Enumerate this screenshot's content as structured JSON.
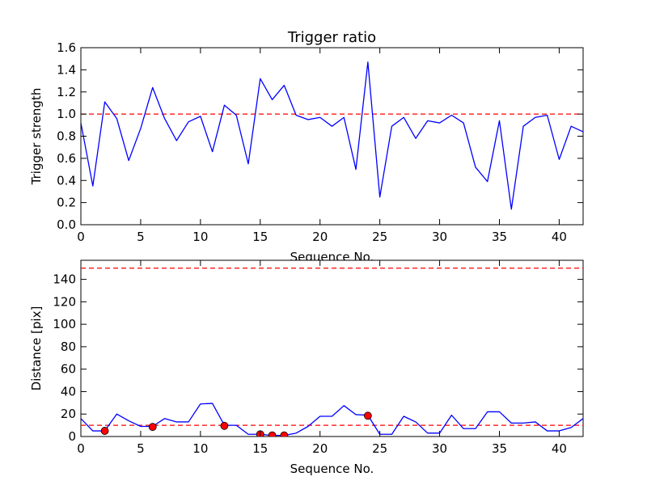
{
  "chart_data": [
    {
      "type": "line",
      "title": "Trigger ratio",
      "xlabel": "Sequence No.",
      "ylabel": "Trigger strength",
      "xlim": [
        0,
        42
      ],
      "ylim": [
        0,
        1.6
      ],
      "xticks": [
        0,
        5,
        10,
        15,
        20,
        25,
        30,
        35,
        40
      ],
      "yticks": [
        0.0,
        0.2,
        0.4,
        0.6,
        0.8,
        1.0,
        1.2,
        1.4,
        1.6
      ],
      "ytick_labels": [
        "0.0",
        "0.2",
        "0.4",
        "0.6",
        "0.8",
        "1.0",
        "1.2",
        "1.4",
        "1.6"
      ],
      "grid": false,
      "series": [
        {
          "color": "#0000ff",
          "style": "solid",
          "x": [
            0,
            1,
            2,
            3,
            4,
            5,
            6,
            7,
            8,
            9,
            10,
            11,
            12,
            13,
            14,
            15,
            16,
            17,
            18,
            19,
            20,
            21,
            22,
            23,
            24,
            25,
            26,
            27,
            28,
            29,
            30,
            31,
            32,
            33,
            34,
            35,
            36,
            37,
            38,
            39,
            40,
            41,
            42
          ],
          "y": [
            0.92,
            0.35,
            1.11,
            0.96,
            0.58,
            0.87,
            1.24,
            0.96,
            0.76,
            0.93,
            0.98,
            0.66,
            1.08,
            0.99,
            0.55,
            1.32,
            1.13,
            1.26,
            0.99,
            0.95,
            0.97,
            0.89,
            0.97,
            0.5,
            1.47,
            0.25,
            0.89,
            0.97,
            0.78,
            0.94,
            0.92,
            0.99,
            0.92,
            0.52,
            0.39,
            0.94,
            0.14,
            0.89,
            0.97,
            0.99,
            0.59,
            0.89,
            0.84
          ]
        }
      ],
      "hlines": [
        {
          "y": 1.0,
          "color": "#ff0000",
          "style": "dashed"
        }
      ]
    },
    {
      "type": "line",
      "title": "",
      "xlabel": "Sequence No.",
      "ylabel": "Distance [pix]",
      "xlim": [
        0,
        42
      ],
      "ylim": [
        0,
        157
      ],
      "xticks": [
        0,
        5,
        10,
        15,
        20,
        25,
        30,
        35,
        40
      ],
      "yticks": [
        0,
        20,
        40,
        60,
        80,
        100,
        120,
        140
      ],
      "ytick_labels": [
        "0",
        "20",
        "40",
        "60",
        "80",
        "100",
        "120",
        "140"
      ],
      "grid": false,
      "series": [
        {
          "color": "#0000ff",
          "style": "solid",
          "x": [
            0,
            1,
            2,
            3,
            4,
            5,
            6,
            7,
            8,
            9,
            10,
            11,
            12,
            13,
            14,
            15,
            16,
            17,
            18,
            19,
            20,
            21,
            22,
            23,
            24,
            25,
            26,
            27,
            28,
            29,
            30,
            31,
            32,
            33,
            34,
            35,
            36,
            37,
            38,
            39,
            40,
            41,
            42
          ],
          "y": [
            16,
            5,
            5,
            20,
            14,
            9,
            9,
            16,
            13,
            13,
            29,
            29.5,
            10,
            10,
            2,
            2,
            1,
            1,
            3,
            9,
            18,
            18,
            27.5,
            19.5,
            19,
            2,
            2,
            18,
            13,
            3,
            3,
            19,
            7,
            7,
            22,
            22,
            12,
            12,
            13,
            5,
            5,
            8,
            16
          ]
        },
        {
          "color": "#ff0000",
          "style": "markers",
          "x": [
            2,
            6,
            12,
            15,
            16,
            17,
            24
          ],
          "y": [
            5,
            8.5,
            9.5,
            2,
            1,
            1,
            18.5
          ]
        }
      ],
      "hlines": [
        {
          "y": 150,
          "color": "#ff0000",
          "style": "dashed"
        },
        {
          "y": 10,
          "color": "#ff0000",
          "style": "dashed"
        }
      ]
    }
  ]
}
